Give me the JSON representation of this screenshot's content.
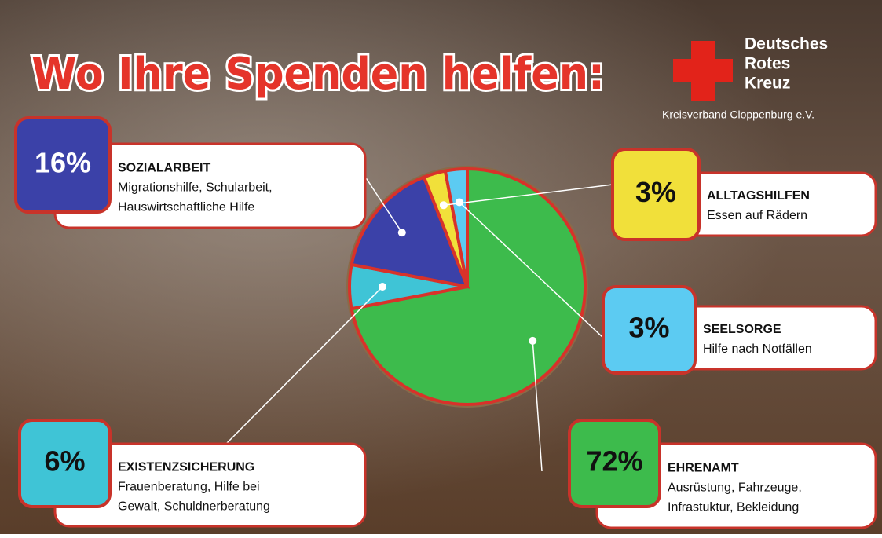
{
  "chart_data": {
    "type": "pie",
    "title": "Wo Ihre Spenden helfen:",
    "logo": {
      "lines": [
        "Deutsches",
        "Rotes",
        "Kreuz"
      ],
      "subtitle": "Kreisverband Cloppenburg e.V."
    },
    "categories": [
      "EHRENAMT",
      "EXISTENZSICHERUNG",
      "SOZIALARBEIT",
      "ALLTAGSHILFEN",
      "SEELSORGE"
    ],
    "values": [
      72,
      6,
      16,
      3,
      3
    ],
    "value_labels": [
      "72%",
      "6%",
      "16%",
      "3%",
      "3%"
    ],
    "descriptions": [
      [
        "Ausrüstung, Fahrzeuge,",
        "Infrastuktur, Bekleidung"
      ],
      [
        "Frauenberatung, Hilfe bei",
        "Gewalt, Schuldnerberatung"
      ],
      [
        "Migrationshilfe, Schularbeit,",
        "Hauswirtschaftliche Hilfe"
      ],
      [
        "Essen auf Rädern"
      ],
      [
        "Hilfe nach Notfällen"
      ]
    ],
    "colors": [
      "#3dbb4c",
      "#3fc4d6",
      "#3b41a8",
      "#f1e03a",
      "#5ccbf2"
    ]
  }
}
